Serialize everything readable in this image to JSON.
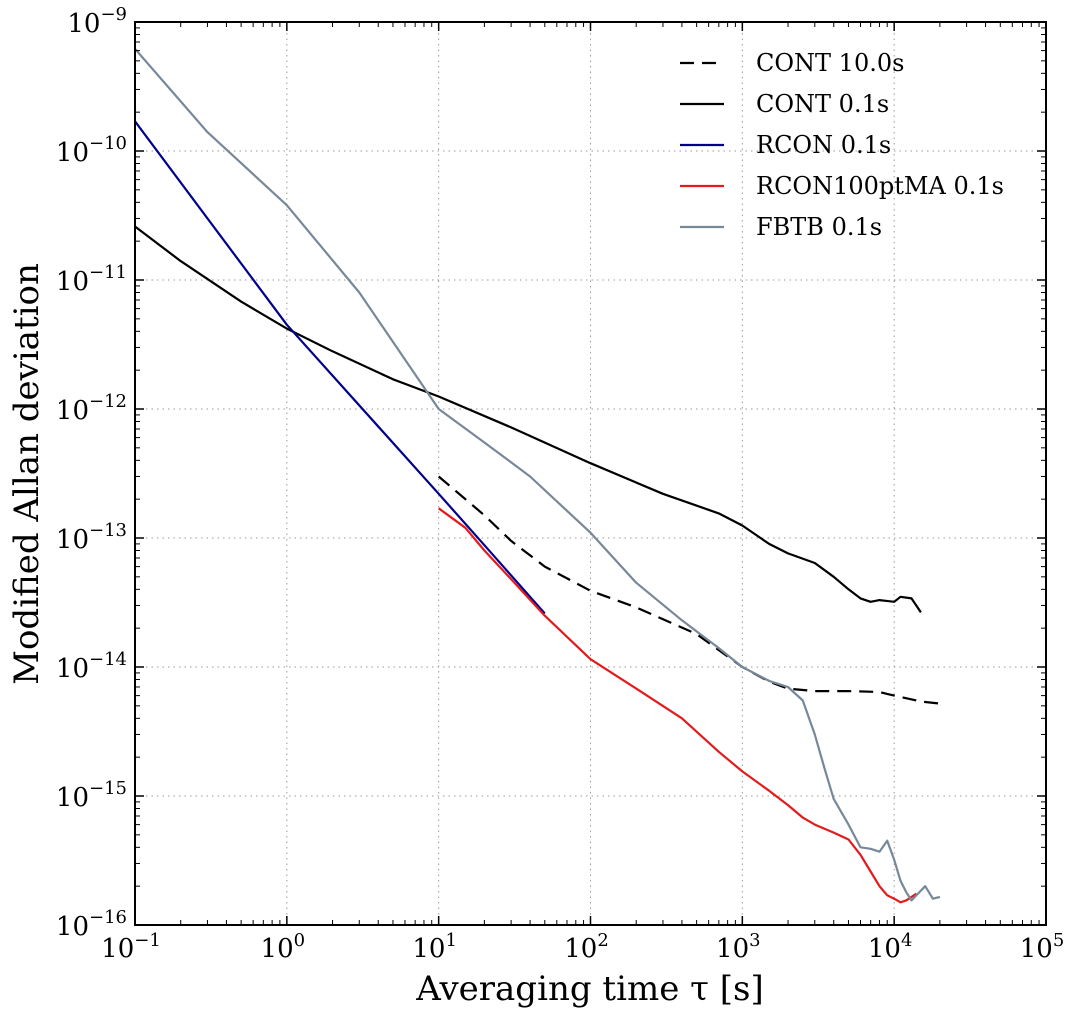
{
  "chart_data": {
    "type": "line",
    "xlabel": "Averaging time τ [s]",
    "ylabel": "Modified Allan deviation",
    "x_scale": "log",
    "y_scale": "log",
    "xlim": [
      0.1,
      100000
    ],
    "ylim": [
      1e-16,
      1e-09
    ],
    "grid": true,
    "legend_position": "top-right",
    "x_tick_labels": [
      {
        "base": "10",
        "exp": "−1"
      },
      {
        "base": "10",
        "exp": "0"
      },
      {
        "base": "10",
        "exp": "1"
      },
      {
        "base": "10",
        "exp": "2"
      },
      {
        "base": "10",
        "exp": "3"
      },
      {
        "base": "10",
        "exp": "4"
      },
      {
        "base": "10",
        "exp": "5"
      }
    ],
    "y_tick_labels": [
      {
        "base": "10",
        "exp": "−16"
      },
      {
        "base": "10",
        "exp": "−15"
      },
      {
        "base": "10",
        "exp": "−14"
      },
      {
        "base": "10",
        "exp": "−13"
      },
      {
        "base": "10",
        "exp": "−12"
      },
      {
        "base": "10",
        "exp": "−11"
      },
      {
        "base": "10",
        "exp": "−10"
      },
      {
        "base": "10",
        "exp": "−9"
      }
    ],
    "series": [
      {
        "name": "CONT 10.0s",
        "color": "#000000",
        "dash": "dashed",
        "x": [
          10,
          20,
          30,
          50,
          100,
          200,
          500,
          1000,
          1500,
          2000,
          3000,
          5000,
          8000,
          10000,
          15000,
          20000
        ],
        "y": [
          3e-13,
          1.5e-13,
          9.5e-14,
          6e-14,
          3.9e-14,
          2.9e-14,
          1.8e-14,
          1e-14,
          7.7e-15,
          6.8e-15,
          6.5e-15,
          6.5e-15,
          6.4e-15,
          6e-15,
          5.4e-15,
          5.2e-15
        ]
      },
      {
        "name": "CONT 0.1s",
        "color": "#000000",
        "dash": "solid",
        "x": [
          0.1,
          0.2,
          0.5,
          1,
          2,
          5,
          10,
          30,
          100,
          300,
          700,
          1000,
          1500,
          2000,
          3000,
          4000,
          5000,
          6000,
          7000,
          8000,
          10000,
          11000,
          13000,
          15000
        ],
        "y": [
          2.6e-11,
          1.4e-11,
          6.8e-12,
          4.2e-12,
          2.8e-12,
          1.7e-12,
          1.25e-12,
          7.2e-13,
          3.8e-13,
          2.2e-13,
          1.55e-13,
          1.25e-13,
          9e-14,
          7.6e-14,
          6.4e-14,
          5e-14,
          4e-14,
          3.4e-14,
          3.2e-14,
          3.3e-14,
          3.2e-14,
          3.5e-14,
          3.4e-14,
          2.65e-14
        ]
      },
      {
        "name": "RCON 0.1s",
        "color": "#00008b",
        "dash": "solid",
        "x": [
          0.1,
          1,
          10,
          20,
          50
        ],
        "y": [
          1.7e-10,
          4.5e-12,
          2.2e-13,
          8.8e-14,
          2.6e-14
        ]
      },
      {
        "name": "RCON100ptMA 0.1s",
        "color": "#e41a1c",
        "dash": "solid",
        "x": [
          10,
          15,
          20,
          30,
          50,
          100,
          200,
          400,
          700,
          1000,
          1500,
          2000,
          2500,
          3000,
          4000,
          5000,
          6000,
          7000,
          8000,
          9000,
          10000,
          11000,
          12000,
          13000,
          14000
        ],
        "y": [
          1.7e-13,
          1.2e-13,
          8e-14,
          4.8e-14,
          2.5e-14,
          1.15e-14,
          6.8e-15,
          4e-15,
          2.2e-15,
          1.55e-15,
          1.1e-15,
          8.5e-16,
          6.8e-16,
          6e-16,
          5.2e-16,
          4.6e-16,
          3.5e-16,
          2.6e-16,
          2e-16,
          1.7e-16,
          1.6e-16,
          1.5e-16,
          1.55e-16,
          1.65e-16,
          1.75e-16
        ]
      },
      {
        "name": "FBTB 0.1s",
        "color": "#778899",
        "dash": "solid",
        "x": [
          0.1,
          0.3,
          1,
          3,
          10,
          20,
          40,
          100,
          200,
          400,
          700,
          1000,
          1500,
          2000,
          2500,
          3000,
          3500,
          4000,
          5000,
          6000,
          7000,
          8000,
          9000,
          10000,
          11000,
          12000,
          13000,
          14000,
          16000,
          18000,
          20000
        ],
        "y": [
          6.2e-10,
          1.4e-10,
          3.8e-11,
          8e-12,
          1e-12,
          5.5e-13,
          3e-13,
          1.1e-13,
          4.5e-14,
          2.3e-14,
          1.4e-14,
          1e-14,
          7.8e-15,
          7e-15,
          5.5e-15,
          3e-15,
          1.6e-15,
          9.5e-16,
          6e-16,
          4e-16,
          3.9e-16,
          3.7e-16,
          4.5e-16,
          3.2e-16,
          2.2e-16,
          1.8e-16,
          1.55e-16,
          1.7e-16,
          2e-16,
          1.6e-16,
          1.65e-16
        ]
      }
    ]
  }
}
